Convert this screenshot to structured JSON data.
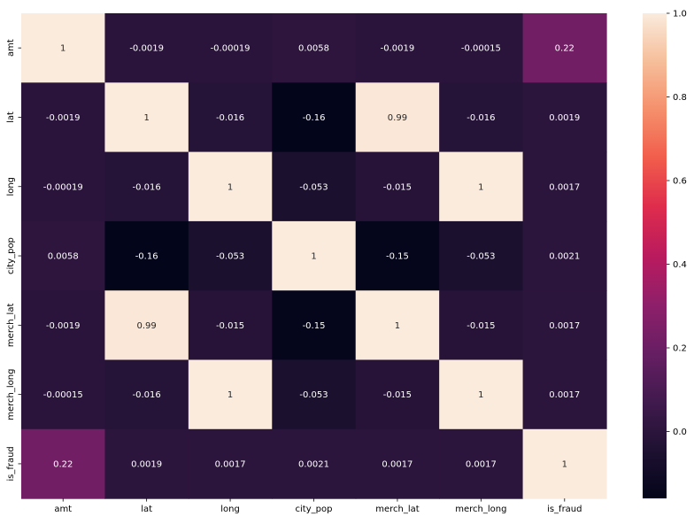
{
  "chart_data": {
    "type": "heatmap",
    "title": "",
    "xlabel": "",
    "ylabel": "",
    "x_categories": [
      "amt",
      "lat",
      "long",
      "city_pop",
      "merch_lat",
      "merch_long",
      "is_fraud"
    ],
    "y_categories": [
      "amt",
      "lat",
      "long",
      "city_pop",
      "merch_lat",
      "merch_long",
      "is_fraud"
    ],
    "values": [
      [
        1,
        -0.0019,
        -0.00019,
        0.0058,
        -0.0019,
        -0.00015,
        0.22
      ],
      [
        -0.0019,
        1,
        -0.016,
        -0.16,
        0.99,
        -0.016,
        0.0019
      ],
      [
        -0.00019,
        -0.016,
        1,
        -0.053,
        -0.015,
        1,
        0.0017
      ],
      [
        0.0058,
        -0.16,
        -0.053,
        1,
        -0.15,
        -0.053,
        0.0021
      ],
      [
        -0.0019,
        0.99,
        -0.015,
        -0.15,
        1,
        -0.015,
        0.0017
      ],
      [
        -0.00015,
        -0.016,
        1,
        -0.053,
        -0.015,
        1,
        0.0017
      ],
      [
        0.22,
        0.0019,
        0.0017,
        0.0021,
        0.0017,
        0.0017,
        1
      ]
    ],
    "annotations": [
      [
        "1",
        "-0.0019",
        "-0.00019",
        "0.0058",
        "-0.0019",
        "-0.00015",
        "0.22"
      ],
      [
        "-0.0019",
        "1",
        "-0.016",
        "-0.16",
        "0.99",
        "-0.016",
        "0.0019"
      ],
      [
        "-0.00019",
        "-0.016",
        "1",
        "-0.053",
        "-0.015",
        "1",
        "0.0017"
      ],
      [
        "0.0058",
        "-0.16",
        "-0.053",
        "1",
        "-0.15",
        "-0.053",
        "0.0021"
      ],
      [
        "-0.0019",
        "0.99",
        "-0.015",
        "-0.15",
        "1",
        "-0.015",
        "0.0017"
      ],
      [
        "-0.00015",
        "-0.016",
        "1",
        "-0.053",
        "-0.015",
        "1",
        "0.0017"
      ],
      [
        "0.22",
        "0.0019",
        "0.0017",
        "0.0021",
        "0.0017",
        "0.0017",
        "1"
      ]
    ],
    "colormap": "rocket",
    "vmin": -0.16,
    "vmax": 1,
    "colorbar_ticks": [
      0.0,
      0.2,
      0.4,
      0.6,
      0.8,
      1.0
    ],
    "colorbar_tick_labels": [
      "0.0",
      "0.2",
      "0.4",
      "0.6",
      "0.8",
      "1.0"
    ],
    "grid": false,
    "legend": "right"
  }
}
